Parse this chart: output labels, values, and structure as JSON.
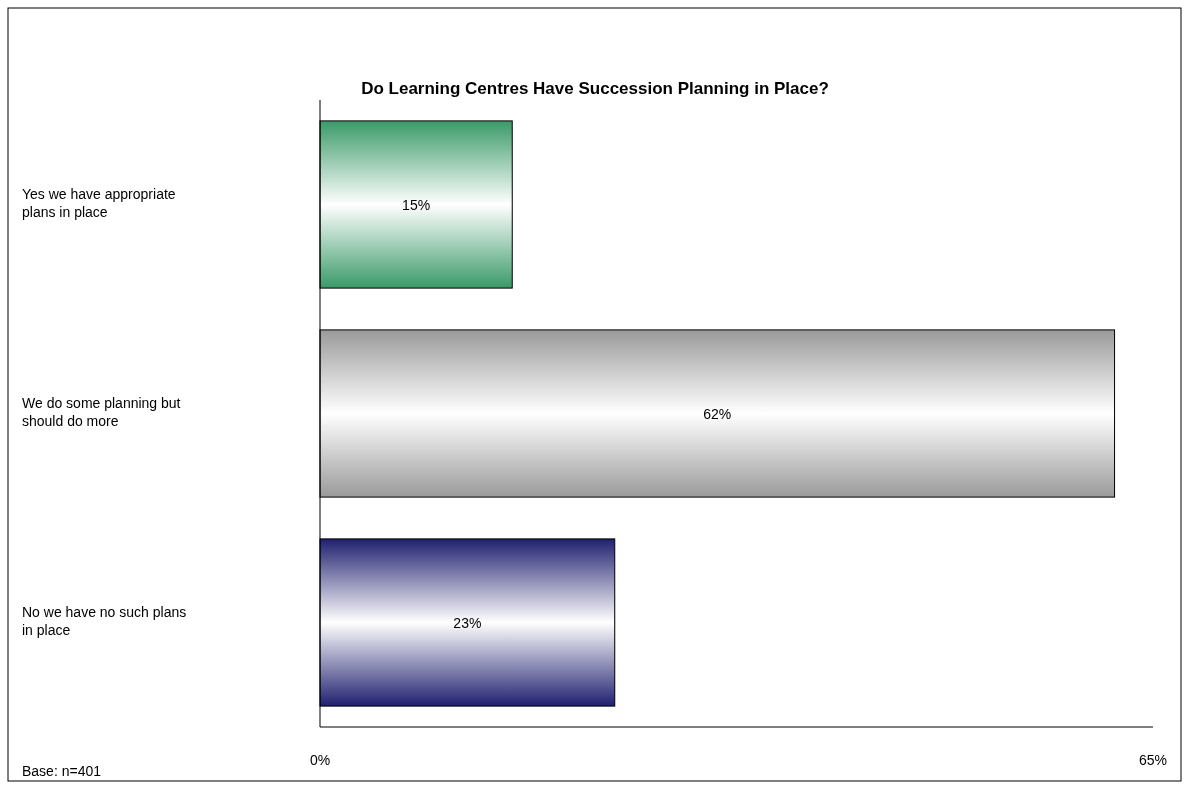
{
  "chart_data": {
    "type": "bar",
    "orientation": "horizontal",
    "title": "Do Learning Centres Have Succession Planning in Place?",
    "categories": [
      "Yes we have appropriate plans in place",
      "We do some planning but should do more",
      "No we have no such plans in place"
    ],
    "values": [
      15,
      62,
      23
    ],
    "colors": [
      "#3a9a68",
      "#9a9a9a",
      "#202070"
    ],
    "value_labels": [
      "15%",
      "62%",
      "23%"
    ],
    "xlim": [
      0,
      65
    ],
    "xticks": [
      {
        "value": 0,
        "label": "0%"
      },
      {
        "value": 65,
        "label": "65%"
      }
    ],
    "grid": false,
    "annotations": [
      "Base: n=401"
    ]
  }
}
